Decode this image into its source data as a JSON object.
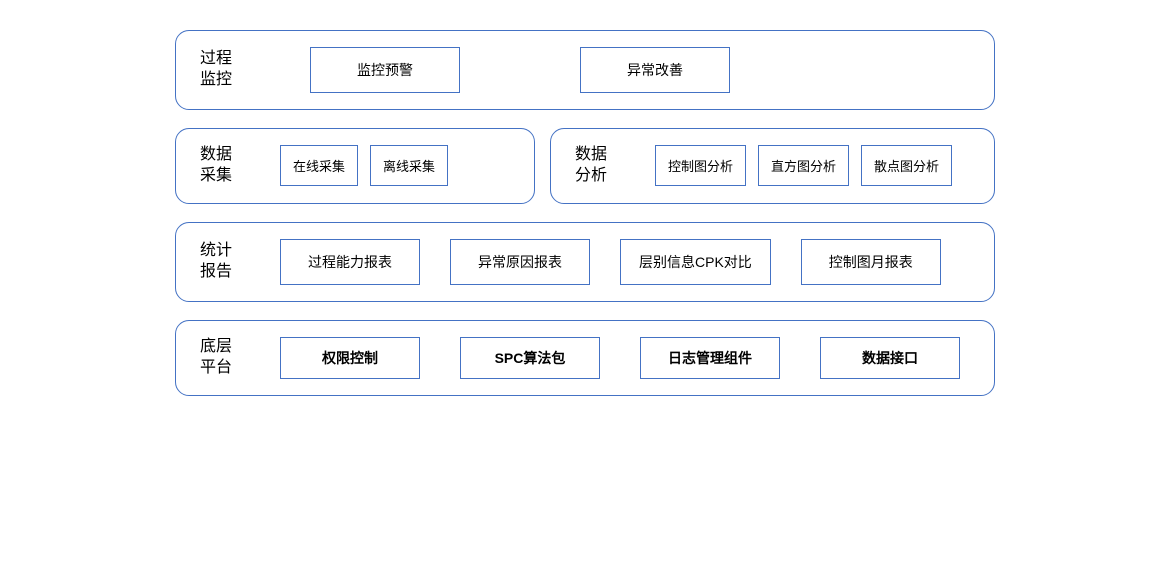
{
  "style": {
    "border_color": "#4472c4",
    "text_color": "#000000",
    "background_color": "#ffffff",
    "border_radius_group": 14,
    "border_width": 1.5,
    "title_fontsize": 16,
    "item_fontsize": 14
  },
  "rows": [
    {
      "groups": [
        {
          "title_line1": "过程",
          "title_line2": "监控",
          "items": [
            "监控预警",
            "异常改善"
          ]
        }
      ]
    },
    {
      "groups": [
        {
          "title_line1": "数据",
          "title_line2": "采集",
          "items": [
            "在线采集",
            "离线采集"
          ]
        },
        {
          "title_line1": "数据",
          "title_line2": "分析",
          "items": [
            "控制图分析",
            "直方图分析",
            "散点图分析"
          ]
        }
      ]
    },
    {
      "groups": [
        {
          "title_line1": "统计",
          "title_line2": "报告",
          "items": [
            "过程能力报表",
            "异常原因报表",
            "层别信息CPK对比",
            "控制图月报表"
          ]
        }
      ]
    },
    {
      "groups": [
        {
          "title_line1": "底层",
          "title_line2": "平台",
          "items": [
            "权限控制",
            "SPC算法包",
            "日志管理组件",
            "数据接口"
          ]
        }
      ]
    }
  ]
}
